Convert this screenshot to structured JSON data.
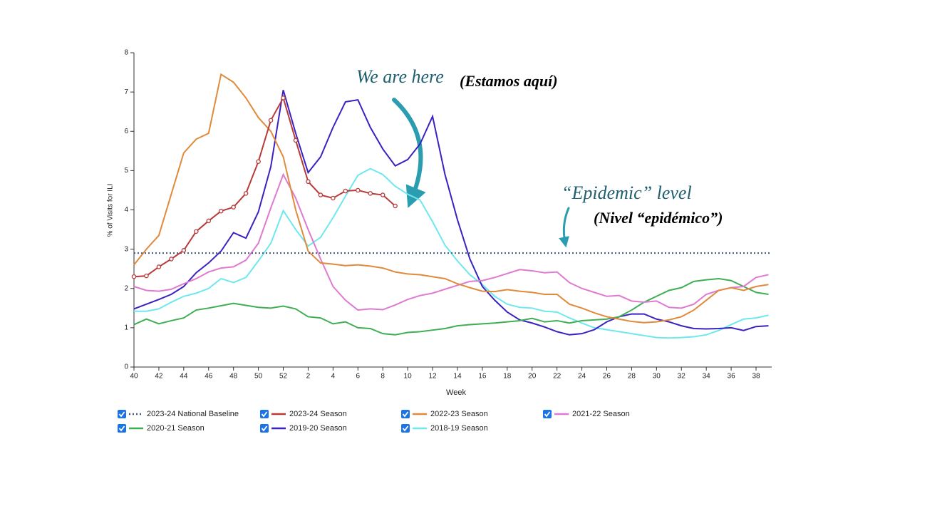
{
  "chart_data": {
    "type": "line",
    "ylabel": "% of Visits for ILI",
    "xlabel": "Week",
    "categories": [
      "40",
      null,
      "42",
      null,
      "44",
      null,
      "46",
      null,
      "48",
      null,
      "50",
      null,
      "52",
      null,
      "2",
      null,
      "4",
      null,
      "6",
      null,
      "8",
      null,
      "10",
      null,
      "12",
      null,
      "14",
      null,
      "16",
      null,
      "18",
      null,
      "20",
      null,
      "22",
      null,
      "24",
      null,
      "26",
      null,
      "28",
      null,
      "30",
      null,
      "32",
      null,
      "34",
      null,
      "36",
      null,
      "38",
      null
    ],
    "ylim": [
      0,
      8
    ],
    "yticks": [
      0,
      1,
      2,
      3,
      4,
      5,
      6,
      7,
      8
    ],
    "series": [
      {
        "name": "2023-24 National Baseline",
        "color": "#3d5a85",
        "dash": "dotted",
        "value": 2.9
      },
      {
        "name": "2023-24 Season",
        "color": "#b83a3a",
        "markers": true,
        "values": [
          2.3,
          2.32,
          2.55,
          2.75,
          2.97,
          3.45,
          3.72,
          3.97,
          4.07,
          4.42,
          5.23,
          6.28,
          6.85,
          5.77,
          4.72,
          4.38,
          4.3,
          4.48,
          4.5,
          4.42,
          4.38,
          4.1,
          null,
          null,
          null,
          null,
          null,
          null,
          null,
          null,
          null,
          null,
          null,
          null,
          null,
          null,
          null,
          null,
          null,
          null,
          null,
          null,
          null,
          null,
          null,
          null,
          null,
          null,
          null,
          null,
          null,
          null
        ]
      },
      {
        "name": "2022-23 Season",
        "color": "#e08a3c",
        "values": [
          2.6,
          3.0,
          3.35,
          4.4,
          5.45,
          5.8,
          5.95,
          7.45,
          7.25,
          6.85,
          6.35,
          6.0,
          5.35,
          4.0,
          2.95,
          2.65,
          2.62,
          2.58,
          2.6,
          2.57,
          2.52,
          2.42,
          2.37,
          2.35,
          2.3,
          2.25,
          2.12,
          2.02,
          1.93,
          1.92,
          1.97,
          1.93,
          1.9,
          1.85,
          1.85,
          1.6,
          1.5,
          1.38,
          1.28,
          1.22,
          1.16,
          1.13,
          1.15,
          1.2,
          1.28,
          1.45,
          1.7,
          1.95,
          2.02,
          1.95,
          2.05,
          2.1
        ]
      },
      {
        "name": "2021-22 Season",
        "color": "#df7ad0",
        "values": [
          2.05,
          1.95,
          1.93,
          1.98,
          2.12,
          2.25,
          2.42,
          2.52,
          2.55,
          2.72,
          3.15,
          4.05,
          4.9,
          4.3,
          3.5,
          2.75,
          2.05,
          1.7,
          1.45,
          1.48,
          1.46,
          1.58,
          1.72,
          1.82,
          1.88,
          1.98,
          2.08,
          2.18,
          2.2,
          2.28,
          2.38,
          2.48,
          2.45,
          2.4,
          2.42,
          2.15,
          2.0,
          1.9,
          1.8,
          1.82,
          1.68,
          1.65,
          1.68,
          1.52,
          1.5,
          1.6,
          1.85,
          1.95,
          2.02,
          2.05,
          2.28,
          2.35
        ]
      },
      {
        "name": "2020-21 Season",
        "color": "#3fae55",
        "values": [
          1.08,
          1.22,
          1.1,
          1.18,
          1.25,
          1.45,
          1.5,
          1.56,
          1.62,
          1.57,
          1.52,
          1.5,
          1.55,
          1.48,
          1.28,
          1.25,
          1.1,
          1.15,
          1.0,
          0.98,
          0.85,
          0.82,
          0.88,
          0.9,
          0.94,
          0.98,
          1.05,
          1.08,
          1.1,
          1.12,
          1.15,
          1.18,
          1.24,
          1.15,
          1.18,
          1.12,
          1.18,
          1.2,
          1.22,
          1.28,
          1.45,
          1.65,
          1.8,
          1.95,
          2.02,
          2.18,
          2.22,
          2.25,
          2.2,
          2.05,
          1.9,
          1.85
        ]
      },
      {
        "name": "2019-20 Season",
        "color": "#3a22c0",
        "values": [
          1.48,
          1.6,
          1.72,
          1.85,
          2.05,
          2.4,
          2.65,
          2.95,
          3.42,
          3.28,
          3.95,
          5.1,
          7.05,
          5.95,
          4.95,
          5.35,
          6.1,
          6.75,
          6.8,
          6.1,
          5.55,
          5.12,
          5.28,
          5.68,
          6.38,
          4.9,
          3.75,
          2.75,
          2.05,
          1.7,
          1.4,
          1.2,
          1.12,
          1.02,
          0.9,
          0.82,
          0.85,
          0.95,
          1.15,
          1.28,
          1.35,
          1.35,
          1.22,
          1.15,
          1.05,
          0.98,
          0.97,
          0.98,
          1.0,
          0.93,
          1.03,
          1.05
        ]
      },
      {
        "name": "2018-19 Season",
        "color": "#6ee8ee",
        "values": [
          1.42,
          1.42,
          1.48,
          1.65,
          1.8,
          1.88,
          2.0,
          2.25,
          2.15,
          2.28,
          2.7,
          3.15,
          3.98,
          3.5,
          3.08,
          3.3,
          3.8,
          4.35,
          4.88,
          5.05,
          4.9,
          4.6,
          4.4,
          4.25,
          3.7,
          3.1,
          2.7,
          2.35,
          2.1,
          1.8,
          1.6,
          1.52,
          1.5,
          1.42,
          1.4,
          1.25,
          1.12,
          1.0,
          0.95,
          0.9,
          0.85,
          0.8,
          0.75,
          0.74,
          0.75,
          0.77,
          0.82,
          0.93,
          1.08,
          1.22,
          1.25,
          1.32
        ]
      }
    ],
    "annotations": [
      "We are here",
      "(Estamos aquí)",
      "“Epidemic” level",
      "(Nivel “epidémico”)"
    ]
  }
}
